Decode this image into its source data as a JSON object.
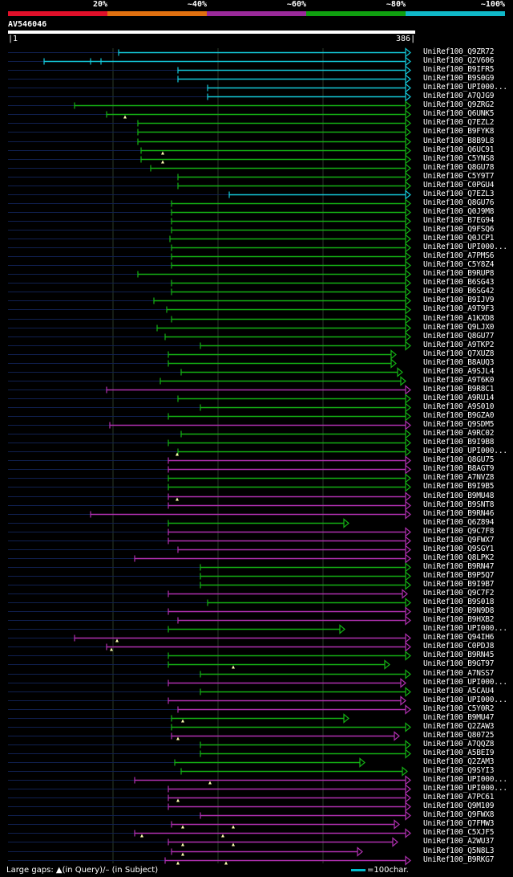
{
  "legend": {
    "labels": [
      "20%",
      "~40%",
      "~60%",
      "~80%",
      "~100%"
    ],
    "colors": [
      "#e0102a",
      "#e07010",
      "#9a2a9a",
      "#10a010",
      "#10b8c8"
    ]
  },
  "query": {
    "id": "AV546046",
    "start": "1",
    "end": "386"
  },
  "footer": {
    "gaps_text": "Large gaps: ▲(in Query)/– (in Subject)",
    "scale_text": "=100char."
  },
  "hits": [
    {
      "name": "UniRef100_Q9ZR72",
      "c": "cyan",
      "s": 148,
      "e": 512,
      "pre": [],
      "gap": []
    },
    {
      "name": "UniRef100_Q2V606",
      "c": "cyan",
      "s": 55,
      "e": 512,
      "pre": [],
      "gap": [
        113,
        126
      ]
    },
    {
      "name": "UniRef100_B9IFR5",
      "c": "cyan",
      "s": 222,
      "e": 512,
      "pre": [],
      "gap": []
    },
    {
      "name": "UniRef100_B9S0G9",
      "c": "cyan",
      "s": 222,
      "e": 512,
      "pre": [],
      "gap": []
    },
    {
      "name": "UniRef100_UPI000...",
      "c": "cyan",
      "s": 259,
      "e": 512,
      "pre": [],
      "gap": []
    },
    {
      "name": "UniRef100_A7QJG9",
      "c": "cyan",
      "s": 259,
      "e": 512,
      "pre": [],
      "gap": []
    },
    {
      "name": "UniRef100_Q9ZRG2",
      "c": "green",
      "s": 93,
      "e": 512,
      "pre": [],
      "gap": []
    },
    {
      "name": "UniRef100_Q6UNK5",
      "c": "green",
      "s": 133,
      "e": 512,
      "pre": [
        156
      ],
      "gap": []
    },
    {
      "name": "UniRef100_Q7EZL2",
      "c": "green",
      "s": 172,
      "e": 512,
      "pre": [],
      "gap": []
    },
    {
      "name": "UniRef100_B9FYK8",
      "c": "green",
      "s": 172,
      "e": 512,
      "pre": [],
      "gap": []
    },
    {
      "name": "UniRef100_B8B9L8",
      "c": "green",
      "s": 172,
      "e": 512,
      "pre": [],
      "gap": []
    },
    {
      "name": "UniRef100_Q6UC91",
      "c": "green",
      "s": 176,
      "e": 512,
      "pre": [
        203
      ],
      "gap": []
    },
    {
      "name": "UniRef100_C5YNS8",
      "c": "green",
      "s": 176,
      "e": 512,
      "pre": [
        203
      ],
      "gap": []
    },
    {
      "name": "UniRef100_Q8GU78",
      "c": "green",
      "s": 188,
      "e": 512,
      "pre": [],
      "gap": []
    },
    {
      "name": "UniRef100_C5Y9T7",
      "c": "green",
      "s": 222,
      "e": 512,
      "pre": [],
      "gap": []
    },
    {
      "name": "UniRef100_C0PGU4",
      "c": "green",
      "s": 222,
      "e": 512,
      "pre": [],
      "gap": []
    },
    {
      "name": "UniRef100_Q7EZL3",
      "c": "cyan",
      "s": 286,
      "e": 512,
      "pre": [],
      "gap": []
    },
    {
      "name": "UniRef100_Q8GU76",
      "c": "green",
      "s": 214,
      "e": 512,
      "pre": [],
      "gap": []
    },
    {
      "name": "UniRef100_Q0J9M8",
      "c": "green",
      "s": 214,
      "e": 512,
      "pre": [],
      "gap": []
    },
    {
      "name": "UniRef100_B7EG94",
      "c": "green",
      "s": 214,
      "e": 512,
      "pre": [],
      "gap": []
    },
    {
      "name": "UniRef100_Q9FSQ6",
      "c": "green",
      "s": 214,
      "e": 512,
      "pre": [],
      "gap": []
    },
    {
      "name": "UniRef100_Q0JCP1",
      "c": "green",
      "s": 212,
      "e": 512,
      "pre": [],
      "gap": []
    },
    {
      "name": "UniRef100_UPI000...",
      "c": "green",
      "s": 214,
      "e": 512,
      "pre": [],
      "gap": []
    },
    {
      "name": "UniRef100_A7PMS6",
      "c": "green",
      "s": 214,
      "e": 512,
      "pre": [],
      "gap": []
    },
    {
      "name": "UniRef100_C5Y8Z4",
      "c": "green",
      "s": 214,
      "e": 512,
      "pre": [],
      "gap": []
    },
    {
      "name": "UniRef100_B9RUP8",
      "c": "green",
      "s": 172,
      "e": 512,
      "pre": [],
      "gap": []
    },
    {
      "name": "UniRef100_B6SG43",
      "c": "green",
      "s": 214,
      "e": 512,
      "pre": [],
      "gap": []
    },
    {
      "name": "UniRef100_B6SG42",
      "c": "green",
      "s": 214,
      "e": 512,
      "pre": [],
      "gap": []
    },
    {
      "name": "UniRef100_B9IJV9",
      "c": "green",
      "s": 192,
      "e": 512,
      "pre": [],
      "gap": []
    },
    {
      "name": "UniRef100_A9T9F3",
      "c": "green",
      "s": 208,
      "e": 512,
      "pre": [],
      "gap": []
    },
    {
      "name": "UniRef100_A1KXD8",
      "c": "green",
      "s": 214,
      "e": 512,
      "pre": [],
      "gap": []
    },
    {
      "name": "UniRef100_Q9LJX0",
      "c": "green",
      "s": 196,
      "e": 512,
      "pre": [],
      "gap": []
    },
    {
      "name": "UniRef100_Q8GU77",
      "c": "green",
      "s": 206,
      "e": 512,
      "pre": [],
      "gap": []
    },
    {
      "name": "UniRef100_A9TKP2",
      "c": "green",
      "s": 250,
      "e": 512,
      "pre": [],
      "gap": []
    },
    {
      "name": "UniRef100_Q7XUZ8",
      "c": "green",
      "s": 210,
      "e": 494,
      "pre": [],
      "gap": []
    },
    {
      "name": "UniRef100_B8AUQ3",
      "c": "green",
      "s": 210,
      "e": 494,
      "pre": [],
      "gap": []
    },
    {
      "name": "UniRef100_A9SJL4",
      "c": "green",
      "s": 226,
      "e": 502,
      "pre": [],
      "gap": []
    },
    {
      "name": "UniRef100_A9T6K0",
      "c": "green",
      "s": 200,
      "e": 506,
      "pre": [],
      "gap": []
    },
    {
      "name": "UniRef100_B9R8C1",
      "c": "purple",
      "s": 133,
      "e": 512,
      "pre": [],
      "gap": []
    },
    {
      "name": "UniRef100_A9RU14",
      "c": "green",
      "s": 222,
      "e": 512,
      "pre": [],
      "gap": []
    },
    {
      "name": "UniRef100_A9S010",
      "c": "green",
      "s": 250,
      "e": 512,
      "pre": [],
      "gap": []
    },
    {
      "name": "UniRef100_B9GZA0",
      "c": "green",
      "s": 210,
      "e": 512,
      "pre": [],
      "gap": []
    },
    {
      "name": "UniRef100_Q9SDM5",
      "c": "purple",
      "s": 137,
      "e": 512,
      "pre": [],
      "gap": []
    },
    {
      "name": "UniRef100_A9RC02",
      "c": "green",
      "s": 226,
      "e": 512,
      "pre": [],
      "gap": []
    },
    {
      "name": "UniRef100_B9I9B8",
      "c": "green",
      "s": 210,
      "e": 512,
      "pre": [],
      "gap": []
    },
    {
      "name": "UniRef100_UPI000...",
      "c": "green",
      "s": 222,
      "e": 512,
      "pre": [
        221
      ],
      "gap": []
    },
    {
      "name": "UniRef100_Q8GU75",
      "c": "purple",
      "s": 210,
      "e": 512,
      "pre": [],
      "gap": []
    },
    {
      "name": "UniRef100_B8AGT9",
      "c": "purple",
      "s": 210,
      "e": 512,
      "pre": [],
      "gap": []
    },
    {
      "name": "UniRef100_A7NVZ8",
      "c": "green",
      "s": 210,
      "e": 512,
      "pre": [],
      "gap": []
    },
    {
      "name": "UniRef100_B9I9B5",
      "c": "green",
      "s": 210,
      "e": 512,
      "pre": [],
      "gap": []
    },
    {
      "name": "UniRef100_B9MU48",
      "c": "purple",
      "s": 210,
      "e": 512,
      "pre": [
        221
      ],
      "gap": []
    },
    {
      "name": "UniRef100_B9SNT8",
      "c": "purple",
      "s": 210,
      "e": 512,
      "pre": [],
      "gap": []
    },
    {
      "name": "UniRef100_B9RN46",
      "c": "purple",
      "s": 113,
      "e": 512,
      "pre": [],
      "gap": []
    },
    {
      "name": "UniRef100_Q6Z894",
      "c": "green",
      "s": 210,
      "e": 435,
      "pre": [],
      "gap": []
    },
    {
      "name": "UniRef100_Q9C7F8",
      "c": "purple",
      "s": 210,
      "e": 512,
      "pre": [],
      "gap": []
    },
    {
      "name": "UniRef100_Q9FWX7",
      "c": "purple",
      "s": 210,
      "e": 512,
      "pre": [],
      "gap": []
    },
    {
      "name": "UniRef100_Q9SGY1",
      "c": "purple",
      "s": 222,
      "e": 512,
      "pre": [],
      "gap": []
    },
    {
      "name": "UniRef100_Q8LPK2",
      "c": "purple",
      "s": 168,
      "e": 512,
      "pre": [],
      "gap": []
    },
    {
      "name": "UniRef100_B9RN47",
      "c": "green",
      "s": 250,
      "e": 512,
      "pre": [],
      "gap": []
    },
    {
      "name": "UniRef100_B9P5Q7",
      "c": "green",
      "s": 250,
      "e": 512,
      "pre": [],
      "gap": []
    },
    {
      "name": "UniRef100_B9I9B7",
      "c": "green",
      "s": 250,
      "e": 512,
      "pre": [],
      "gap": []
    },
    {
      "name": "UniRef100_Q9C7F2",
      "c": "purple",
      "s": 210,
      "e": 508,
      "pre": [],
      "gap": []
    },
    {
      "name": "UniRef100_B9S018",
      "c": "green",
      "s": 259,
      "e": 512,
      "pre": [],
      "gap": []
    },
    {
      "name": "UniRef100_B9N9D8",
      "c": "purple",
      "s": 210,
      "e": 512,
      "pre": [],
      "gap": []
    },
    {
      "name": "UniRef100_B9HXB2",
      "c": "purple",
      "s": 222,
      "e": 512,
      "pre": [],
      "gap": []
    },
    {
      "name": "UniRef100_UPI000...",
      "c": "green",
      "s": 210,
      "e": 430,
      "pre": [],
      "gap": []
    },
    {
      "name": "UniRef100_Q94IH6",
      "c": "purple",
      "s": 93,
      "e": 512,
      "pre": [
        146
      ],
      "gap": []
    },
    {
      "name": "UniRef100_C0PDJ8",
      "c": "purple",
      "s": 133,
      "e": 512,
      "pre": [
        139
      ],
      "gap": []
    },
    {
      "name": "UniRef100_B9RN45",
      "c": "green",
      "s": 210,
      "e": 512,
      "pre": [],
      "gap": []
    },
    {
      "name": "UniRef100_B9GT97",
      "c": "green",
      "s": 210,
      "e": 486,
      "pre": [
        291
      ],
      "gap": []
    },
    {
      "name": "UniRef100_A7NSS7",
      "c": "green",
      "s": 250,
      "e": 512,
      "pre": [],
      "gap": []
    },
    {
      "name": "UniRef100_UPI000...",
      "c": "purple",
      "s": 210,
      "e": 506,
      "pre": [],
      "gap": []
    },
    {
      "name": "UniRef100_A5CAU4",
      "c": "green",
      "s": 250,
      "e": 512,
      "pre": [],
      "gap": []
    },
    {
      "name": "UniRef100_UPI000...",
      "c": "purple",
      "s": 210,
      "e": 506,
      "pre": [],
      "gap": []
    },
    {
      "name": "UniRef100_C5Y0R2",
      "c": "purple",
      "s": 222,
      "e": 512,
      "pre": [],
      "gap": []
    },
    {
      "name": "UniRef100_B9MU47",
      "c": "green",
      "s": 214,
      "e": 435,
      "pre": [
        228
      ],
      "gap": []
    },
    {
      "name": "UniRef100_Q2ZAW3",
      "c": "green",
      "s": 214,
      "e": 512,
      "pre": [],
      "gap": []
    },
    {
      "name": "UniRef100_Q80725",
      "c": "purple",
      "s": 214,
      "e": 498,
      "pre": [
        222
      ],
      "gap": []
    },
    {
      "name": "UniRef100_A7QQZ8",
      "c": "green",
      "s": 250,
      "e": 512,
      "pre": [],
      "gap": []
    },
    {
      "name": "UniRef100_A5BEI9",
      "c": "green",
      "s": 250,
      "e": 512,
      "pre": [],
      "gap": []
    },
    {
      "name": "UniRef100_Q2ZAM3",
      "c": "green",
      "s": 218,
      "e": 455,
      "pre": [],
      "gap": []
    },
    {
      "name": "UniRef100_Q9SYI3",
      "c": "green",
      "s": 226,
      "e": 508,
      "pre": [],
      "gap": []
    },
    {
      "name": "UniRef100_UPI000...",
      "c": "purple",
      "s": 168,
      "e": 512,
      "pre": [
        262
      ],
      "gap": []
    },
    {
      "name": "UniRef100_UPI000...",
      "c": "purple",
      "s": 210,
      "e": 512,
      "pre": [],
      "gap": []
    },
    {
      "name": "UniRef100_A7PC61",
      "c": "purple",
      "s": 210,
      "e": 512,
      "pre": [
        222
      ],
      "gap": []
    },
    {
      "name": "UniRef100_Q9M109",
      "c": "purple",
      "s": 210,
      "e": 512,
      "pre": [],
      "gap": []
    },
    {
      "name": "UniRef100_Q9FWX8",
      "c": "purple",
      "s": 250,
      "e": 512,
      "pre": [],
      "gap": []
    },
    {
      "name": "UniRef100_Q7FMW3",
      "c": "purple",
      "s": 214,
      "e": 498,
      "pre": [
        228,
        291
      ],
      "gap": []
    },
    {
      "name": "UniRef100_C5XJF5",
      "c": "purple",
      "s": 168,
      "e": 512,
      "pre": [
        177,
        278
      ],
      "gap": []
    },
    {
      "name": "UniRef100_A2WU37",
      "c": "purple",
      "s": 210,
      "e": 496,
      "pre": [
        228,
        291
      ],
      "gap": []
    },
    {
      "name": "UniRef100_Q5N8L3",
      "c": "purple",
      "s": 214,
      "e": 452,
      "pre": [
        228
      ],
      "gap": []
    },
    {
      "name": "UniRef100_B9RKG7",
      "c": "purple",
      "s": 206,
      "e": 512,
      "pre": [
        222,
        282
      ],
      "gap": []
    }
  ]
}
